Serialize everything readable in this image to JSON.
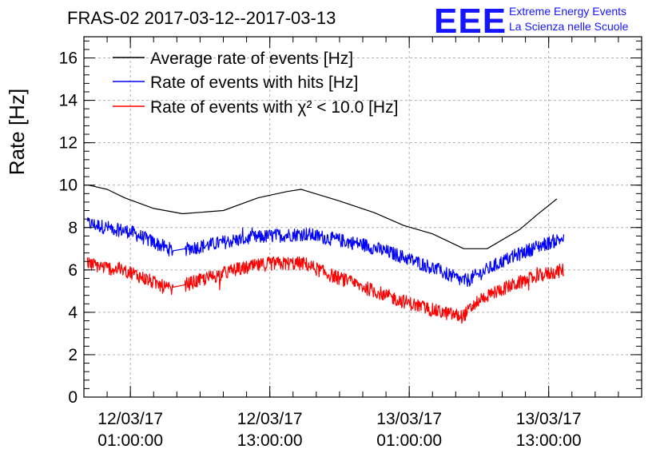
{
  "title": "FRAS-02 2017-03-12--2017-03-13",
  "logo": {
    "mark": "EEE",
    "line1": "Extreme Energy Events",
    "line2": "La Scienza nelle Scuole",
    "color": "#1515ff"
  },
  "chart_data": {
    "type": "line",
    "title": "FRAS-02 2017-03-12--2017-03-13",
    "xlabel": "",
    "ylabel": "Rate [Hz]",
    "ylim": [
      0,
      17
    ],
    "xlim_hours": [
      -3.0,
      45.0
    ],
    "x_unit": "hours since 2017-03-12 00:00",
    "yticks": [
      "0",
      "2",
      "4",
      "6",
      "8",
      "10",
      "12",
      "14",
      "16"
    ],
    "xticks": [
      {
        "hour": 1,
        "label1": "12/03/17",
        "label2": "01:00:00"
      },
      {
        "hour": 13,
        "label1": "12/03/17",
        "label2": "13:00:00"
      },
      {
        "hour": 25,
        "label1": "13/03/17",
        "label2": "01:00:00"
      },
      {
        "hour": 37,
        "label1": "13/03/17",
        "label2": "13:00:00"
      }
    ],
    "grid": true,
    "legend_position": "top-left",
    "series": [
      {
        "name": "Average rate of events [Hz]",
        "color": "#000000",
        "noise": 0,
        "x": [
          -2.6,
          -1.0,
          0.5,
          3.0,
          5.5,
          9.0,
          12.0,
          14.5,
          15.7,
          19.0,
          22.0,
          24.5,
          27.0,
          29.7,
          31.7,
          34.5,
          36.0,
          37.7
        ],
        "y": [
          10.0,
          9.8,
          9.4,
          8.9,
          8.65,
          8.8,
          9.4,
          9.7,
          9.8,
          9.25,
          8.7,
          8.1,
          7.7,
          7.0,
          7.0,
          7.9,
          8.6,
          9.35
        ]
      },
      {
        "name": "Rate of events with hits [Hz]",
        "color": "#0000ff",
        "noise": 0.33,
        "x": [
          -2.7,
          -1.0,
          1.0,
          3.0,
          4.7,
          5.7,
          7.0,
          10.0,
          13.0,
          16.0,
          18.0,
          21.0,
          24.0,
          27.0,
          29.5,
          30.0,
          31.0,
          33.0,
          36.0,
          38.3
        ],
        "y": [
          8.2,
          8.0,
          7.8,
          7.3,
          6.9,
          7.0,
          7.1,
          7.4,
          7.6,
          7.7,
          7.5,
          7.2,
          6.7,
          6.1,
          5.5,
          5.5,
          5.8,
          6.4,
          7.1,
          7.5
        ]
      },
      {
        "name": "Rate of events with χ² < 10.0 [Hz]",
        "color": "#ff0000",
        "noise": 0.33,
        "x": [
          -2.7,
          -1.0,
          1.0,
          3.0,
          4.7,
          5.7,
          7.0,
          10.0,
          13.0,
          16.0,
          18.0,
          21.0,
          24.0,
          27.0,
          29.5,
          30.0,
          31.0,
          33.0,
          36.0,
          38.3
        ],
        "y": [
          6.3,
          6.1,
          5.9,
          5.4,
          5.0,
          5.3,
          5.5,
          6.0,
          6.3,
          6.3,
          5.8,
          5.2,
          4.6,
          4.1,
          3.8,
          4.0,
          4.6,
          5.1,
          5.7,
          6.0
        ]
      }
    ]
  }
}
